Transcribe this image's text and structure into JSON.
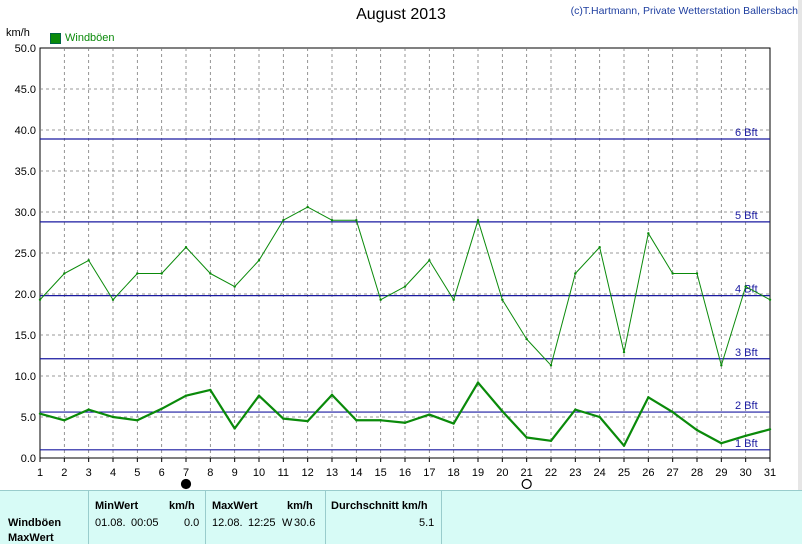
{
  "title": "August 2013",
  "credit": "(c)T.Hartmann, Private Wetterstation Ballersbach",
  "y_unit": "km/h",
  "colors": {
    "gust": "#0a8a0a",
    "bft_line": "#1a1aa0",
    "grid": "#7a7a7a",
    "footer_bg": "#d7fbf6"
  },
  "chart_data": {
    "type": "line",
    "title": "August 2013",
    "ylabel": "km/h",
    "xlabel": "",
    "x": [
      1,
      2,
      3,
      4,
      5,
      6,
      7,
      8,
      9,
      10,
      11,
      12,
      13,
      14,
      15,
      16,
      17,
      18,
      19,
      20,
      21,
      22,
      23,
      24,
      25,
      26,
      27,
      28,
      29,
      30,
      31
    ],
    "xlim": [
      1,
      31
    ],
    "ylim": [
      0,
      50
    ],
    "y_ticks": [
      "0.0",
      "5.0",
      "10.0",
      "15.0",
      "20.0",
      "25.0",
      "30.0",
      "35.0",
      "40.0",
      "45.0",
      "50.0"
    ],
    "x_ticks": [
      "1",
      "2",
      "3",
      "4",
      "5",
      "6",
      "7",
      "8",
      "9",
      "10",
      "11",
      "12",
      "13",
      "14",
      "15",
      "16",
      "17",
      "18",
      "19",
      "20",
      "21",
      "22",
      "23",
      "24",
      "25",
      "26",
      "27",
      "28",
      "29",
      "30",
      "31"
    ],
    "grid": true,
    "legend_position": "top-left",
    "series": [
      {
        "name": "Windböen",
        "style": "thin",
        "values": [
          19.3,
          22.5,
          24.1,
          19.3,
          22.5,
          22.5,
          25.7,
          22.5,
          20.9,
          24.1,
          29.0,
          30.6,
          29.0,
          29.0,
          19.3,
          20.9,
          24.1,
          19.3,
          29.0,
          19.3,
          14.5,
          11.3,
          22.5,
          25.7,
          12.9,
          27.4,
          22.5,
          22.5,
          11.3,
          20.9,
          19.3
        ]
      },
      {
        "name": "",
        "style": "thick",
        "values": [
          5.4,
          4.6,
          5.9,
          5.0,
          4.6,
          6.0,
          7.6,
          8.3,
          3.6,
          7.6,
          4.8,
          4.5,
          7.7,
          4.6,
          4.6,
          4.3,
          5.3,
          4.2,
          9.2,
          5.7,
          2.5,
          2.1,
          5.9,
          5.0,
          1.5,
          7.4,
          5.6,
          3.4,
          1.8,
          2.7,
          3.5
        ]
      }
    ],
    "reference_lines": [
      {
        "label": "1 Bft",
        "value": 1
      },
      {
        "label": "2 Bft",
        "value": 5.6
      },
      {
        "label": "3 Bft",
        "value": 12.1
      },
      {
        "label": "4 Bft",
        "value": 19.8
      },
      {
        "label": "5 Bft",
        "value": 28.8
      },
      {
        "label": "6 Bft",
        "value": 38.9
      }
    ],
    "moon_markers": [
      {
        "day": 7,
        "phase": "new"
      },
      {
        "day": 21,
        "phase": "full"
      }
    ]
  },
  "legend": {
    "label": "Windböen"
  },
  "footer": {
    "row_label_1": "Windböen",
    "row_label_2": "MaxWert",
    "min_header": "MinWert",
    "min_unit": "km/h",
    "min_date": "01.08.",
    "min_time": "00:05",
    "min_value": "0.0",
    "max_header": "MaxWert",
    "max_unit": "km/h",
    "max_date": "12.08.",
    "max_time": "12:25",
    "max_dir": "W",
    "max_value": "30.6",
    "avg_header": "Durchschnitt km/h",
    "avg_value": "5.1"
  }
}
